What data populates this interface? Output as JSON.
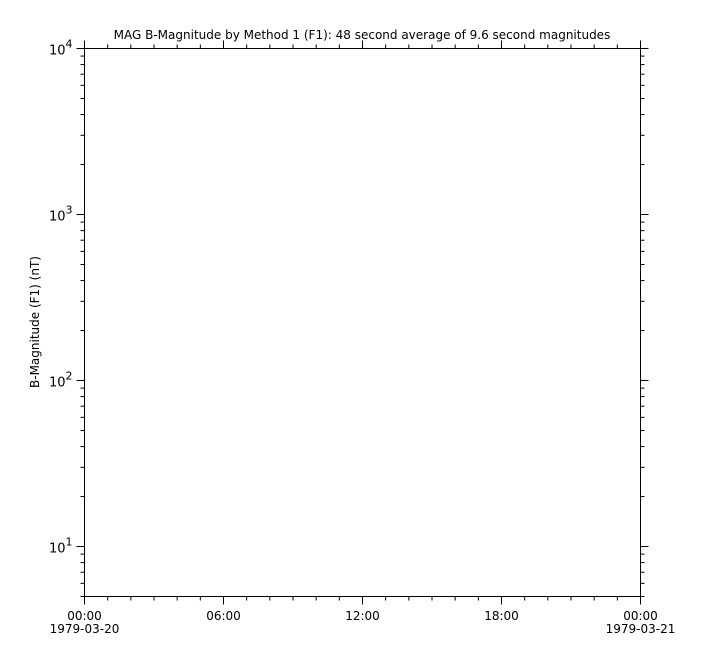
{
  "chart_data": {
    "type": "line",
    "title": "MAG  B-Magnitude by Method 1 (F1): 48 second average of 9.6 second magnitudes",
    "xlabel": "",
    "ylabel": "B-Magnitude (F1) (nT)",
    "yscale": "log",
    "ylim": [
      5,
      10000
    ],
    "xlim": [
      "1979-03-20 00:00",
      "1979-03-21 00:00"
    ],
    "y_ticks": [
      {
        "base": "10",
        "exp": "1",
        "value": 10
      },
      {
        "base": "10",
        "exp": "2",
        "value": 100
      },
      {
        "base": "10",
        "exp": "3",
        "value": 1000
      },
      {
        "base": "10",
        "exp": "4",
        "value": 10000
      }
    ],
    "x_ticks": [
      {
        "hours": 0,
        "time": "00:00",
        "date": "1979-03-20"
      },
      {
        "hours": 6,
        "time": "06:00",
        "date": ""
      },
      {
        "hours": 12,
        "time": "12:00",
        "date": ""
      },
      {
        "hours": 18,
        "time": "18:00",
        "date": ""
      },
      {
        "hours": 24,
        "time": "00:00",
        "date": "1979-03-21"
      }
    ],
    "x_minor_tick_hours": 1,
    "grid": false,
    "series": [],
    "colors": {
      "axis": "#000000",
      "background": "#ffffff"
    }
  }
}
